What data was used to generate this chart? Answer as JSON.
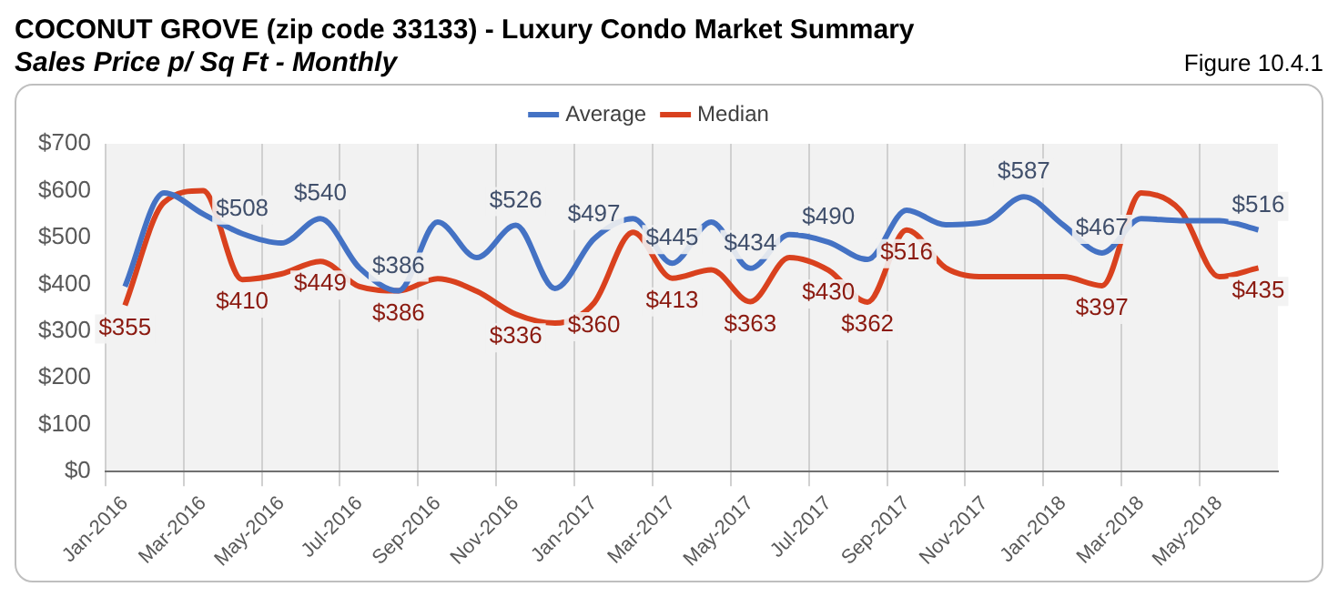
{
  "chart_data": {
    "type": "line",
    "title": "COCONUT GROVE (zip code 33133) - Luxury Condo Market Summary",
    "subtitle": "Sales Price  p/ Sq Ft - Monthly",
    "annotations": [
      "Figure 10.4.1"
    ],
    "categories": [
      "Jan-2016",
      null,
      "Mar-2016",
      null,
      "May-2016",
      null,
      "Jul-2016",
      null,
      "Sep-2016",
      null,
      "Nov-2016",
      null,
      "Jan-2017",
      null,
      "Mar-2017",
      null,
      "May-2017",
      null,
      "Jul-2017",
      null,
      "Sep-2017",
      null,
      "Nov-2017",
      null,
      "Jan-2018",
      null,
      "Mar-2018",
      null,
      "May-2018",
      null
    ],
    "series": [
      {
        "name": "Average",
        "color": "#4472c4",
        "values": [
          395,
          595,
          550,
          508,
          488,
          540,
          435,
          386,
          533,
          457,
          526,
          391,
          497,
          540,
          445,
          533,
          434,
          506,
          490,
          453,
          558,
          527,
          533,
          587,
          527,
          467,
          540,
          536,
          536,
          516
        ],
        "value_labels": [
          null,
          null,
          null,
          "$508",
          null,
          "$540",
          null,
          "$386",
          null,
          null,
          "$526",
          null,
          "$497",
          null,
          "$445",
          null,
          "$434",
          null,
          "$490",
          null,
          null,
          null,
          null,
          "$587",
          null,
          "$467",
          null,
          null,
          null,
          "$516"
        ]
      },
      {
        "name": "Median",
        "color": "#d9411e",
        "values": [
          355,
          575,
          600,
          410,
          422,
          449,
          395,
          386,
          412,
          385,
          336,
          317,
          360,
          511,
          413,
          431,
          363,
          457,
          430,
          362,
          516,
          435,
          416,
          416,
          416,
          397,
          595,
          558,
          416,
          435
        ],
        "value_labels": [
          "$355",
          null,
          null,
          "$410",
          null,
          "$449",
          null,
          "$386",
          null,
          null,
          "$336",
          null,
          "$360",
          null,
          "$413",
          null,
          "$363",
          null,
          "$430",
          "$362",
          "$516",
          null,
          null,
          null,
          null,
          "$397",
          null,
          null,
          null,
          "$435"
        ]
      }
    ],
    "ylim": [
      0,
      700
    ],
    "yticks": [
      {
        "value": 0,
        "label": "$0"
      },
      {
        "value": 100,
        "label": "$100"
      },
      {
        "value": 200,
        "label": "$200"
      },
      {
        "value": 300,
        "label": "$300"
      },
      {
        "value": 400,
        "label": "$400"
      },
      {
        "value": 500,
        "label": "$500"
      },
      {
        "value": 600,
        "label": "$600"
      },
      {
        "value": 700,
        "label": "$700"
      }
    ],
    "grid": "x",
    "legend": "top",
    "marker": "none",
    "line_style": "solid"
  }
}
